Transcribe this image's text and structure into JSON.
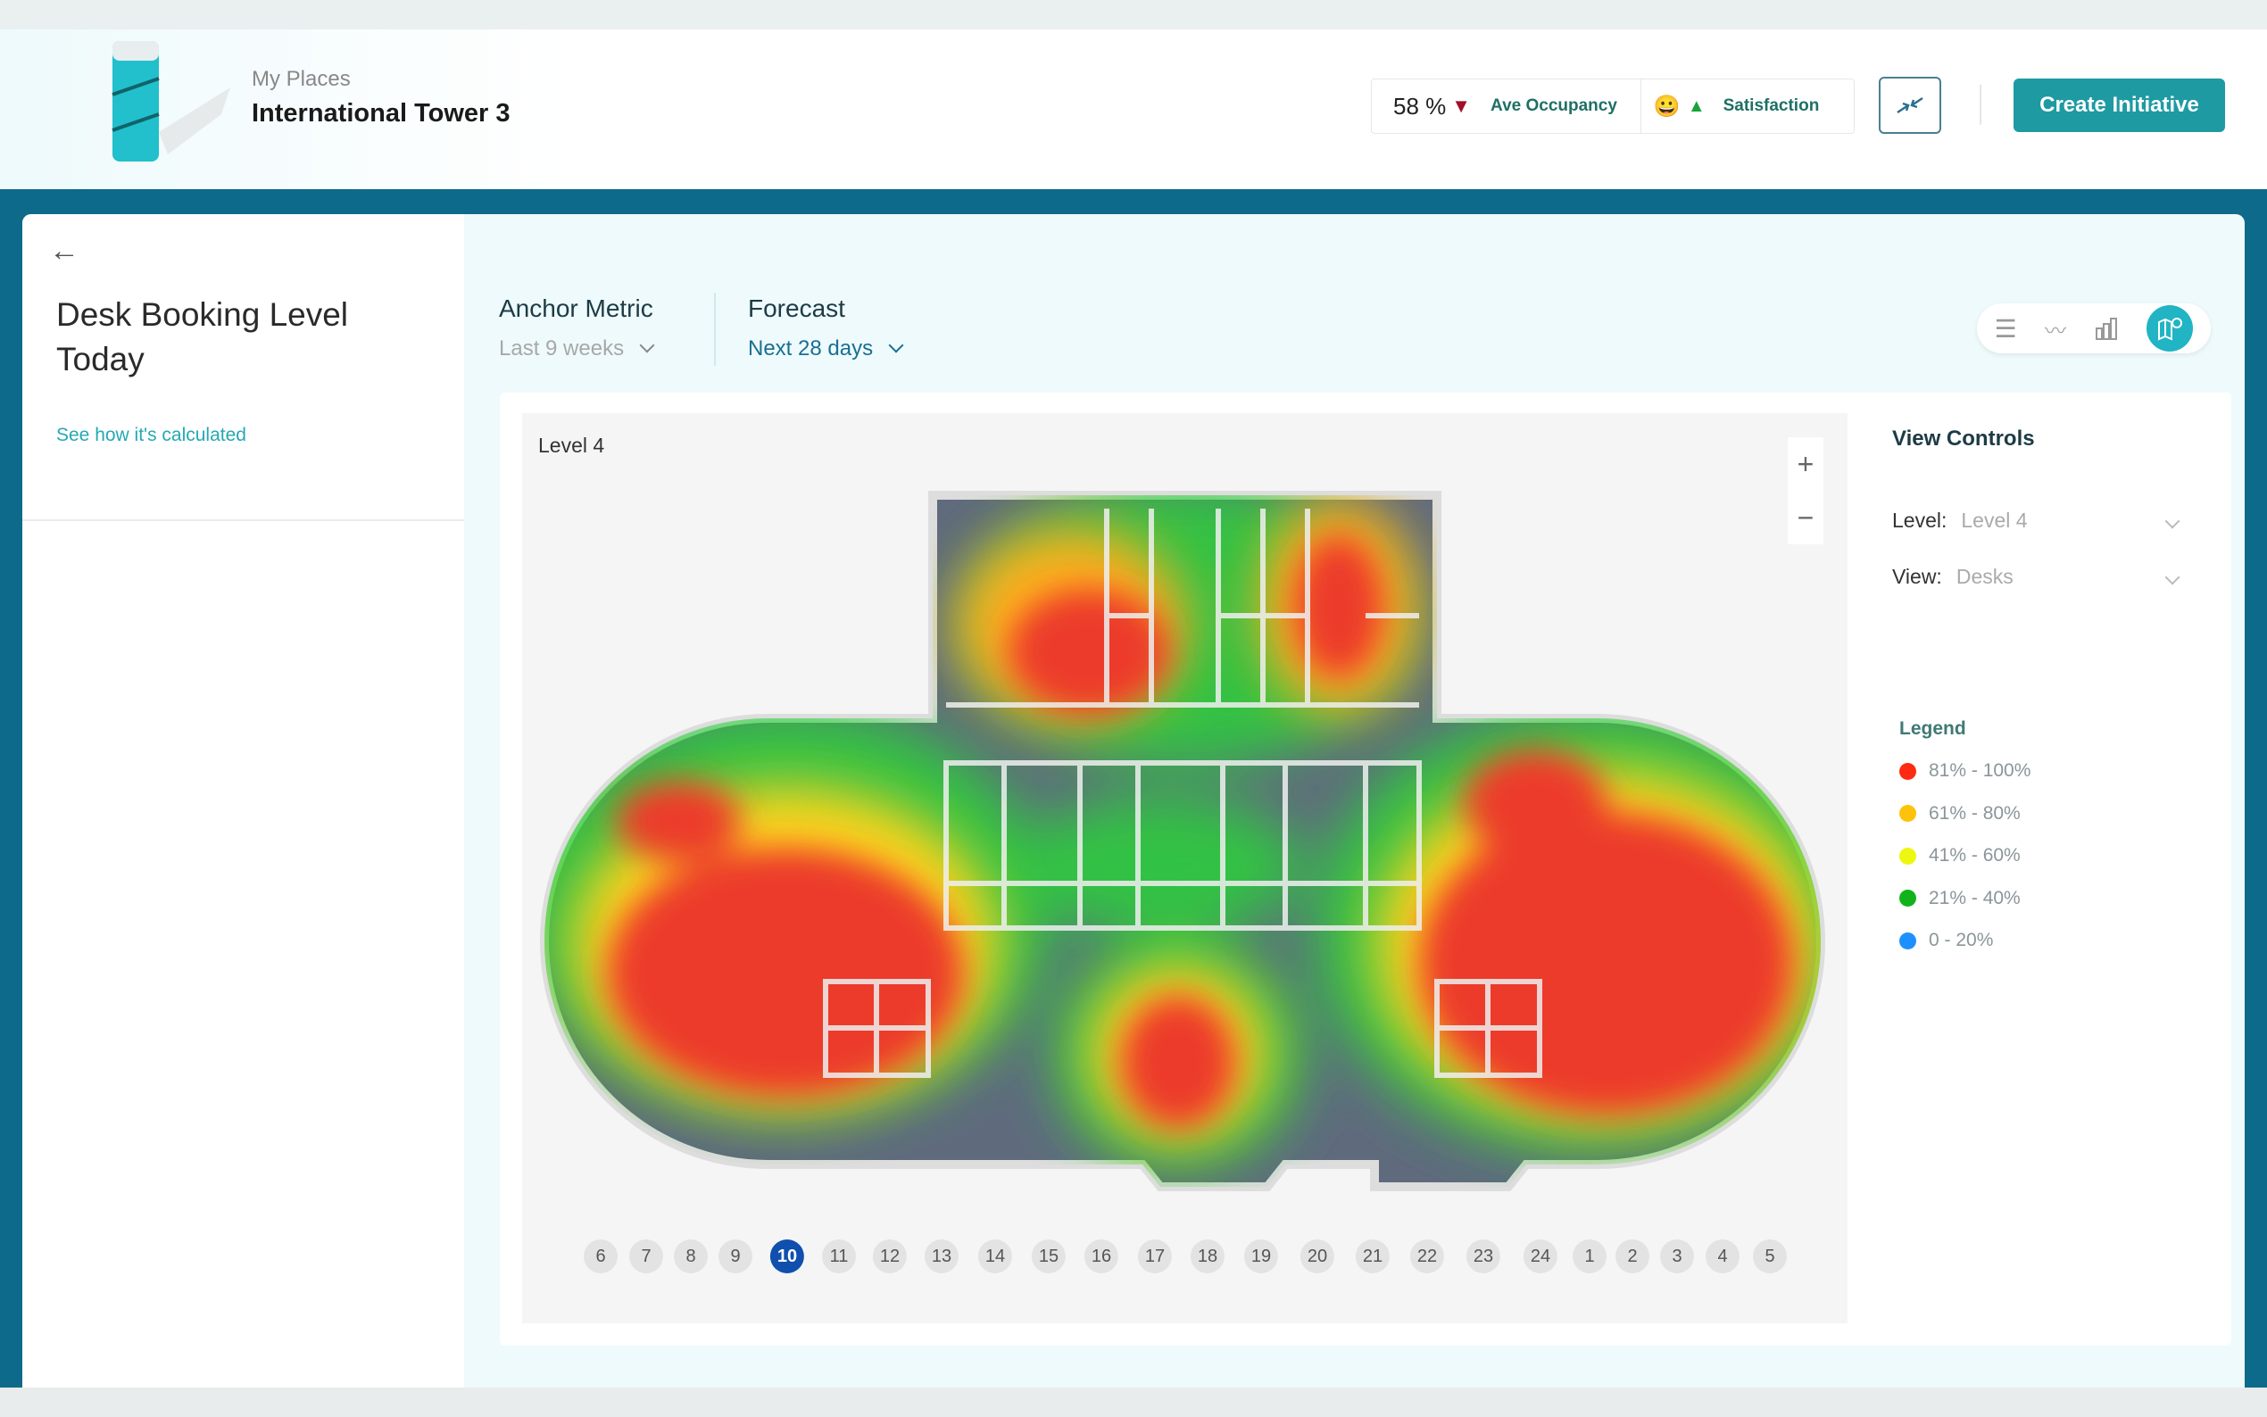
{
  "header": {
    "breadcrumb": "My Places",
    "building": "International Tower 3",
    "occupancy_value": "58 %",
    "occupancy_label": "Ave Occupancy",
    "satisfaction_label": "Satisfaction",
    "create_button": "Create Initiative"
  },
  "left": {
    "title_line1": "Desk Booking Level",
    "title_line2": "Today",
    "link": "See how it's calculated"
  },
  "filters": {
    "anchor_label": "Anchor Metric",
    "anchor_value": "Last 9 weeks",
    "forecast_label": "Forecast",
    "forecast_value": "Next 28 days"
  },
  "map": {
    "level_title": "Level 4",
    "zoom_in": "+",
    "zoom_out": "−"
  },
  "view_controls": {
    "title": "View Controls",
    "level_label": "Level:",
    "level_value": "Level 4",
    "view_label": "View:",
    "view_value": "Desks"
  },
  "legend": {
    "title": "Legend",
    "items": [
      {
        "label": "81% - 100%",
        "color": "#ff2a12"
      },
      {
        "label": "61% - 80%",
        "color": "#ffc20a"
      },
      {
        "label": "41% - 60%",
        "color": "#eef70f"
      },
      {
        "label": "21% - 40%",
        "color": "#12b31a"
      },
      {
        "label": "0 - 20%",
        "color": "#1e8fff"
      }
    ]
  },
  "timeline": {
    "hours": [
      "6",
      "7",
      "8",
      "9",
      "10",
      "11",
      "12",
      "13",
      "14",
      "15",
      "16",
      "17",
      "18",
      "19",
      "20",
      "21",
      "22",
      "23",
      "24",
      "1",
      "2",
      "3",
      "4",
      "5"
    ],
    "selected": "10"
  },
  "colors": {
    "accent": "#1e9aa3",
    "band": "#0e6a8a",
    "selected_hour": "#0f4fae",
    "down": "#a0102a",
    "up": "#1aa33a"
  }
}
